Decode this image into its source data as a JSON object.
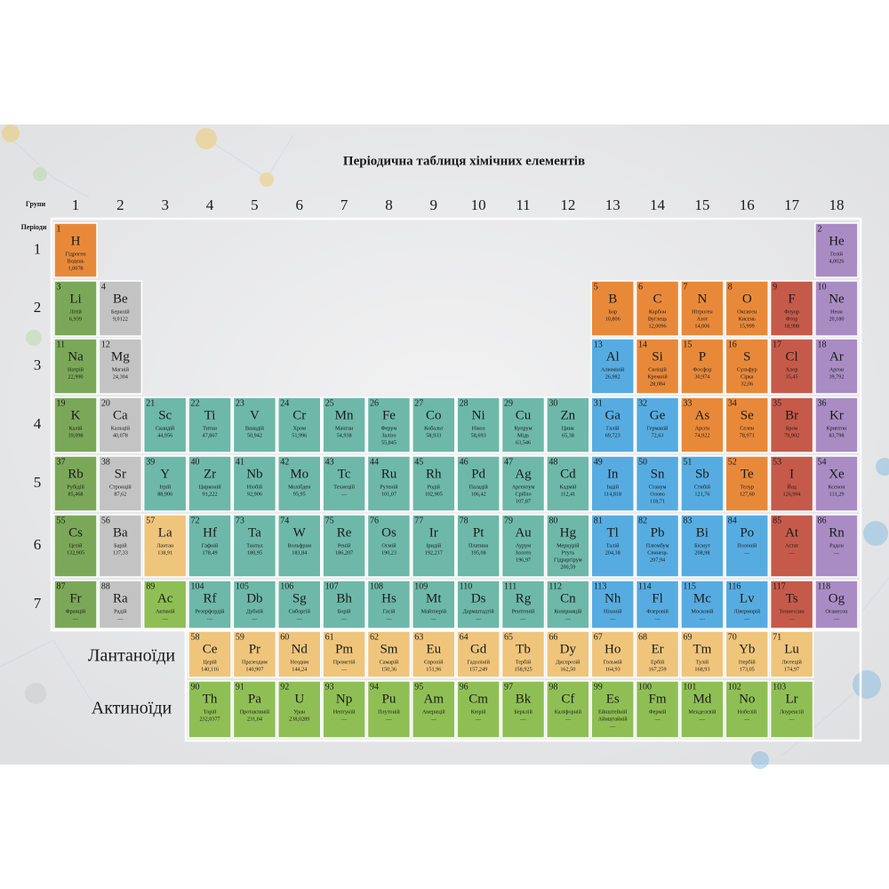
{
  "title": "Періодична таблиця хімічних елементів",
  "groups_label": "Групи",
  "periods_label": "Періоди",
  "groups": [
    1,
    2,
    3,
    4,
    5,
    6,
    7,
    8,
    9,
    10,
    11,
    12,
    13,
    14,
    15,
    16,
    17,
    18
  ],
  "periods": [
    1,
    2,
    3,
    4,
    5,
    6,
    7
  ],
  "lanthanides": "Лантаноїди",
  "actinides": "Актиноїди",
  "elements": [
    {
      "n": 1,
      "s": "H",
      "names": [
        "Гідроген",
        "Водень"
      ],
      "mass": "1,0078",
      "color": "#e8893a"
    },
    {
      "n": 2,
      "s": "He",
      "names": [
        "Гелій"
      ],
      "mass": "4,0026",
      "color": "#a98cc4"
    },
    {
      "n": 3,
      "s": "Li",
      "names": [
        "Літій"
      ],
      "mass": "6,939",
      "color": "#7ba858"
    },
    {
      "n": 4,
      "s": "Be",
      "names": [
        "Берилій"
      ],
      "mass": "9,0122",
      "color": "#c3c3c3"
    },
    {
      "n": 5,
      "s": "B",
      "names": [
        "Бор"
      ],
      "mass": "10,806",
      "color": "#e8893a"
    },
    {
      "n": 6,
      "s": "C",
      "names": [
        "Карбон",
        "Вуглець"
      ],
      "mass": "12,0096",
      "color": "#e8893a"
    },
    {
      "n": 7,
      "s": "N",
      "names": [
        "Нітроген",
        "Азот"
      ],
      "mass": "14,006",
      "color": "#e8893a"
    },
    {
      "n": 8,
      "s": "O",
      "names": [
        "Оксиген",
        "Кисень"
      ],
      "mass": "15,999",
      "color": "#e8893a"
    },
    {
      "n": 9,
      "s": "F",
      "names": [
        "Флуор",
        "Фтор"
      ],
      "mass": "18,998",
      "color": "#c65a4a"
    },
    {
      "n": 10,
      "s": "Ne",
      "names": [
        "Неон"
      ],
      "mass": "20,180",
      "color": "#a98cc4"
    },
    {
      "n": 11,
      "s": "Na",
      "names": [
        "Натрій"
      ],
      "mass": "22,990",
      "color": "#7ba858"
    },
    {
      "n": 12,
      "s": "Mg",
      "names": [
        "Магній"
      ],
      "mass": "24,304",
      "color": "#c3c3c3"
    },
    {
      "n": 13,
      "s": "Al",
      "names": [
        "Алюміній"
      ],
      "mass": "26,982",
      "color": "#56ace0"
    },
    {
      "n": 14,
      "s": "Si",
      "names": [
        "Силіцій",
        "Кремній"
      ],
      "mass": "28,084",
      "color": "#e8893a"
    },
    {
      "n": 15,
      "s": "P",
      "names": [
        "Фосфор"
      ],
      "mass": "30,974",
      "color": "#e8893a"
    },
    {
      "n": 16,
      "s": "S",
      "names": [
        "Сульфур",
        "Сірка"
      ],
      "mass": "32,06",
      "color": "#e8893a"
    },
    {
      "n": 17,
      "s": "Cl",
      "names": [
        "Хлор"
      ],
      "mass": "35,45",
      "color": "#c65a4a"
    },
    {
      "n": 18,
      "s": "Ar",
      "names": [
        "Аргон"
      ],
      "mass": "39,792",
      "color": "#a98cc4"
    },
    {
      "n": 19,
      "s": "K",
      "names": [
        "Калій"
      ],
      "mass": "39,098",
      "color": "#7ba858"
    },
    {
      "n": 20,
      "s": "Ca",
      "names": [
        "Кальцій"
      ],
      "mass": "40,078",
      "color": "#c3c3c3"
    },
    {
      "n": 21,
      "s": "Sc",
      "names": [
        "Скандій"
      ],
      "mass": "44,956",
      "color": "#6db8a9"
    },
    {
      "n": 22,
      "s": "Ti",
      "names": [
        "Титан"
      ],
      "mass": "47,867",
      "color": "#6db8a9"
    },
    {
      "n": 23,
      "s": "V",
      "names": [
        "Ванадій"
      ],
      "mass": "50,942",
      "color": "#6db8a9"
    },
    {
      "n": 24,
      "s": "Cr",
      "names": [
        "Хром"
      ],
      "mass": "51,996",
      "color": "#6db8a9"
    },
    {
      "n": 25,
      "s": "Mn",
      "names": [
        "Манган"
      ],
      "mass": "54,938",
      "color": "#6db8a9"
    },
    {
      "n": 26,
      "s": "Fe",
      "names": [
        "Ферум",
        "Залізо"
      ],
      "mass": "55,845",
      "color": "#6db8a9"
    },
    {
      "n": 27,
      "s": "Co",
      "names": [
        "Кобальт"
      ],
      "mass": "58,933",
      "color": "#6db8a9"
    },
    {
      "n": 28,
      "s": "Ni",
      "names": [
        "Нікол"
      ],
      "mass": "58,693",
      "color": "#6db8a9"
    },
    {
      "n": 29,
      "s": "Cu",
      "names": [
        "Купрум",
        "Мідь"
      ],
      "mass": "63,546",
      "color": "#6db8a9"
    },
    {
      "n": 30,
      "s": "Zn",
      "names": [
        "Цинк"
      ],
      "mass": "65,38",
      "color": "#6db8a9"
    },
    {
      "n": 31,
      "s": "Ga",
      "names": [
        "Галій"
      ],
      "mass": "69,723",
      "color": "#56ace0"
    },
    {
      "n": 32,
      "s": "Ge",
      "names": [
        "Германій"
      ],
      "mass": "72,63",
      "color": "#56ace0"
    },
    {
      "n": 33,
      "s": "As",
      "names": [
        "Арсен"
      ],
      "mass": "74,922",
      "color": "#e8893a"
    },
    {
      "n": 34,
      "s": "Se",
      "names": [
        "Селен"
      ],
      "mass": "78,971",
      "color": "#e8893a"
    },
    {
      "n": 35,
      "s": "Br",
      "names": [
        "Бром"
      ],
      "mass": "79,902",
      "color": "#c65a4a"
    },
    {
      "n": 36,
      "s": "Kr",
      "names": [
        "Криптон"
      ],
      "mass": "83,798",
      "color": "#a98cc4"
    },
    {
      "n": 37,
      "s": "Rb",
      "names": [
        "Рубідій"
      ],
      "mass": "85,468",
      "color": "#7ba858"
    },
    {
      "n": 38,
      "s": "Sr",
      "names": [
        "Стронцій"
      ],
      "mass": "87,62",
      "color": "#c3c3c3"
    },
    {
      "n": 39,
      "s": "Y",
      "names": [
        "Ітрій"
      ],
      "mass": "88,906",
      "color": "#6db8a9"
    },
    {
      "n": 40,
      "s": "Zr",
      "names": [
        "Цирконій"
      ],
      "mass": "91,222",
      "color": "#6db8a9"
    },
    {
      "n": 41,
      "s": "Nb",
      "names": [
        "Ніобій"
      ],
      "mass": "92,906",
      "color": "#6db8a9"
    },
    {
      "n": 42,
      "s": "Mo",
      "names": [
        "Молібден"
      ],
      "mass": "95,95",
      "color": "#6db8a9"
    },
    {
      "n": 43,
      "s": "Tc",
      "names": [
        "Технецій"
      ],
      "mass": "—",
      "color": "#6db8a9"
    },
    {
      "n": 44,
      "s": "Ru",
      "names": [
        "Рутеній"
      ],
      "mass": "101,07",
      "color": "#6db8a9"
    },
    {
      "n": 45,
      "s": "Rh",
      "names": [
        "Родій"
      ],
      "mass": "102,905",
      "color": "#6db8a9"
    },
    {
      "n": 46,
      "s": "Pd",
      "names": [
        "Паладій"
      ],
      "mass": "106,42",
      "color": "#6db8a9"
    },
    {
      "n": 47,
      "s": "Ag",
      "names": [
        "Аргентум",
        "Срібло"
      ],
      "mass": "107,87",
      "color": "#6db8a9"
    },
    {
      "n": 48,
      "s": "Cd",
      "names": [
        "Кадмій"
      ],
      "mass": "112,41",
      "color": "#6db8a9"
    },
    {
      "n": 49,
      "s": "In",
      "names": [
        "Індій"
      ],
      "mass": "114,818",
      "color": "#56ace0"
    },
    {
      "n": 50,
      "s": "Sn",
      "names": [
        "Станум",
        "Олово"
      ],
      "mass": "118,71",
      "color": "#56ace0"
    },
    {
      "n": 51,
      "s": "Sb",
      "names": [
        "Стибій"
      ],
      "mass": "121,76",
      "color": "#56ace0"
    },
    {
      "n": 52,
      "s": "Te",
      "names": [
        "Телур"
      ],
      "mass": "127,60",
      "color": "#e8893a"
    },
    {
      "n": 53,
      "s": "I",
      "names": [
        "Йод"
      ],
      "mass": "126,904",
      "color": "#c65a4a"
    },
    {
      "n": 54,
      "s": "Xe",
      "names": [
        "Ксенон"
      ],
      "mass": "131,29",
      "color": "#a98cc4"
    },
    {
      "n": 55,
      "s": "Cs",
      "names": [
        "Цезій"
      ],
      "mass": "132,905",
      "color": "#7ba858"
    },
    {
      "n": 56,
      "s": "Ba",
      "names": [
        "Барій"
      ],
      "mass": "137,33",
      "color": "#c3c3c3"
    },
    {
      "n": 57,
      "s": "La",
      "names": [
        "Лантан"
      ],
      "mass": "138,91",
      "color": "#efc57c"
    },
    {
      "n": 58,
      "s": "Ce",
      "names": [
        "Церій"
      ],
      "mass": "140,116",
      "color": "#efc57c"
    },
    {
      "n": 59,
      "s": "Pr",
      "names": [
        "Празеодим"
      ],
      "mass": "140,907",
      "color": "#efc57c"
    },
    {
      "n": 60,
      "s": "Nd",
      "names": [
        "Неодим"
      ],
      "mass": "144,24",
      "color": "#efc57c"
    },
    {
      "n": 61,
      "s": "Pm",
      "names": [
        "Прометій"
      ],
      "mass": "—",
      "color": "#efc57c"
    },
    {
      "n": 62,
      "s": "Sm",
      "names": [
        "Самарій"
      ],
      "mass": "150,36",
      "color": "#efc57c"
    },
    {
      "n": 63,
      "s": "Eu",
      "names": [
        "Європій"
      ],
      "mass": "151,96",
      "color": "#efc57c"
    },
    {
      "n": 64,
      "s": "Gd",
      "names": [
        "Гадоліній"
      ],
      "mass": "157,249",
      "color": "#efc57c"
    },
    {
      "n": 65,
      "s": "Tb",
      "names": [
        "Тербій"
      ],
      "mass": "158,925",
      "color": "#efc57c"
    },
    {
      "n": 66,
      "s": "Dy",
      "names": [
        "Диспрозій"
      ],
      "mass": "162,50",
      "color": "#efc57c"
    },
    {
      "n": 67,
      "s": "Ho",
      "names": [
        "Гольмій"
      ],
      "mass": "164,93",
      "color": "#efc57c"
    },
    {
      "n": 68,
      "s": "Er",
      "names": [
        "Ербій"
      ],
      "mass": "167,259",
      "color": "#efc57c"
    },
    {
      "n": 69,
      "s": "Tm",
      "names": [
        "Тулій"
      ],
      "mass": "168,93",
      "color": "#efc57c"
    },
    {
      "n": 70,
      "s": "Yb",
      "names": [
        "Ітербій"
      ],
      "mass": "173,05",
      "color": "#efc57c"
    },
    {
      "n": 71,
      "s": "Lu",
      "names": [
        "Лютецій"
      ],
      "mass": "174,97",
      "color": "#efc57c"
    },
    {
      "n": 72,
      "s": "Hf",
      "names": [
        "Гафній"
      ],
      "mass": "178,49",
      "color": "#6db8a9"
    },
    {
      "n": 73,
      "s": "Ta",
      "names": [
        "Тантал"
      ],
      "mass": "180,95",
      "color": "#6db8a9"
    },
    {
      "n": 74,
      "s": "W",
      "names": [
        "Вольфрам"
      ],
      "mass": "183,84",
      "color": "#6db8a9"
    },
    {
      "n": 75,
      "s": "Re",
      "names": [
        "Реній"
      ],
      "mass": "186,207",
      "color": "#6db8a9"
    },
    {
      "n": 76,
      "s": "Os",
      "names": [
        "Осмій"
      ],
      "mass": "190,23",
      "color": "#6db8a9"
    },
    {
      "n": 77,
      "s": "Ir",
      "names": [
        "Іридій"
      ],
      "mass": "192,217",
      "color": "#6db8a9"
    },
    {
      "n": 78,
      "s": "Pt",
      "names": [
        "Платина"
      ],
      "mass": "195,08",
      "color": "#6db8a9"
    },
    {
      "n": 79,
      "s": "Au",
      "names": [
        "Аурум",
        "Золото"
      ],
      "mass": "196,97",
      "color": "#6db8a9"
    },
    {
      "n": 80,
      "s": "Hg",
      "names": [
        "Меркурій",
        "Ртуть",
        "Гідраргірум"
      ],
      "mass": "200,59",
      "color": "#6db8a9"
    },
    {
      "n": 81,
      "s": "Tl",
      "names": [
        "Талій"
      ],
      "mass": "204,38",
      "color": "#56ace0"
    },
    {
      "n": 82,
      "s": "Pb",
      "names": [
        "Плюмбум",
        "Свинець"
      ],
      "mass": "207,94",
      "color": "#56ace0"
    },
    {
      "n": 83,
      "s": "Bi",
      "names": [
        "Бісмут"
      ],
      "mass": "208,98",
      "color": "#56ace0"
    },
    {
      "n": 84,
      "s": "Po",
      "names": [
        "Полоній"
      ],
      "mass": "—",
      "color": "#56ace0"
    },
    {
      "n": 85,
      "s": "At",
      "names": [
        "Астат"
      ],
      "mass": "—",
      "color": "#c65a4a"
    },
    {
      "n": 86,
      "s": "Rn",
      "names": [
        "Радон"
      ],
      "mass": "—",
      "color": "#a98cc4"
    },
    {
      "n": 87,
      "s": "Fr",
      "names": [
        "Францій"
      ],
      "mass": "—",
      "color": "#7ba858"
    },
    {
      "n": 88,
      "s": "Ra",
      "names": [
        "Радій"
      ],
      "mass": "—",
      "color": "#c3c3c3"
    },
    {
      "n": 89,
      "s": "Ac",
      "names": [
        "Актиній"
      ],
      "mass": "—",
      "color": "#8fbf54"
    },
    {
      "n": 90,
      "s": "Th",
      "names": [
        "Торій"
      ],
      "mass": "232,0377",
      "color": "#8fbf54"
    },
    {
      "n": 91,
      "s": "Pa",
      "names": [
        "Протактиній"
      ],
      "mass": "231,04",
      "color": "#8fbf54"
    },
    {
      "n": 92,
      "s": "U",
      "names": [
        "Уран"
      ],
      "mass": "238,0289",
      "color": "#8fbf54"
    },
    {
      "n": 93,
      "s": "Np",
      "names": [
        "Нептуній"
      ],
      "mass": "—",
      "color": "#8fbf54"
    },
    {
      "n": 94,
      "s": "Pu",
      "names": [
        "Плутоній"
      ],
      "mass": "—",
      "color": "#8fbf54"
    },
    {
      "n": 95,
      "s": "Am",
      "names": [
        "Америцій"
      ],
      "mass": "—",
      "color": "#8fbf54"
    },
    {
      "n": 96,
      "s": "Cm",
      "names": [
        "Кюрій"
      ],
      "mass": "—",
      "color": "#8fbf54"
    },
    {
      "n": 97,
      "s": "Bk",
      "names": [
        "Берклій"
      ],
      "mass": "—",
      "color": "#8fbf54"
    },
    {
      "n": 98,
      "s": "Cf",
      "names": [
        "Каліфорній"
      ],
      "mass": "—",
      "color": "#8fbf54"
    },
    {
      "n": 99,
      "s": "Es",
      "names": [
        "Ейнштейній",
        "Айнштайній"
      ],
      "mass": "—",
      "color": "#8fbf54"
    },
    {
      "n": 100,
      "s": "Fm",
      "names": [
        "Фермій"
      ],
      "mass": "—",
      "color": "#8fbf54"
    },
    {
      "n": 101,
      "s": "Md",
      "names": [
        "Менделєвій"
      ],
      "mass": "—",
      "color": "#8fbf54"
    },
    {
      "n": 102,
      "s": "No",
      "names": [
        "Нобелій"
      ],
      "mass": "—",
      "color": "#8fbf54"
    },
    {
      "n": 103,
      "s": "Lr",
      "names": [
        "Лоуренсій"
      ],
      "mass": "—",
      "color": "#8fbf54"
    },
    {
      "n": 104,
      "s": "Rf",
      "names": [
        "Резерфордій"
      ],
      "mass": "—",
      "color": "#6db8a9"
    },
    {
      "n": 105,
      "s": "Db",
      "names": [
        "Дубній"
      ],
      "mass": "—",
      "color": "#6db8a9"
    },
    {
      "n": 106,
      "s": "Sg",
      "names": [
        "Сиборгій"
      ],
      "mass": "—",
      "color": "#6db8a9"
    },
    {
      "n": 107,
      "s": "Bh",
      "names": [
        "Борій"
      ],
      "mass": "—",
      "color": "#6db8a9"
    },
    {
      "n": 108,
      "s": "Hs",
      "names": [
        "Гасій"
      ],
      "mass": "—",
      "color": "#6db8a9"
    },
    {
      "n": 109,
      "s": "Mt",
      "names": [
        "Майтнерій"
      ],
      "mass": "—",
      "color": "#6db8a9"
    },
    {
      "n": 110,
      "s": "Ds",
      "names": [
        "Дармштадтій"
      ],
      "mass": "—",
      "color": "#6db8a9"
    },
    {
      "n": 111,
      "s": "Rg",
      "names": [
        "Рентгеній"
      ],
      "mass": "—",
      "color": "#6db8a9"
    },
    {
      "n": 112,
      "s": "Cn",
      "names": [
        "Коперницій"
      ],
      "mass": "—",
      "color": "#6db8a9"
    },
    {
      "n": 113,
      "s": "Nh",
      "names": [
        "Ніхоній"
      ],
      "mass": "—",
      "color": "#56ace0"
    },
    {
      "n": 114,
      "s": "Fl",
      "names": [
        "Флеровій"
      ],
      "mass": "—",
      "color": "#56ace0"
    },
    {
      "n": 115,
      "s": "Mc",
      "names": [
        "Московій"
      ],
      "mass": "—",
      "color": "#56ace0"
    },
    {
      "n": 116,
      "s": "Lv",
      "names": [
        "Ліверморій"
      ],
      "mass": "—",
      "color": "#56ace0"
    },
    {
      "n": 117,
      "s": "Ts",
      "names": [
        "Теннессин"
      ],
      "mass": "—",
      "color": "#c65a4a"
    },
    {
      "n": 118,
      "s": "Og",
      "names": [
        "Оганесон"
      ],
      "mass": "—",
      "color": "#a98cc4"
    }
  ]
}
